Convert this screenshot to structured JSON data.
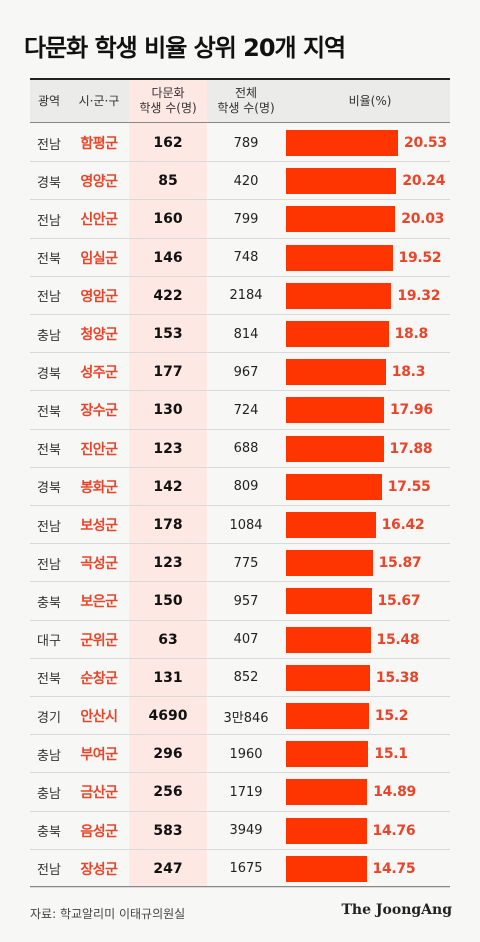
{
  "title": "다문화 학생 비율 상위 20개 지역",
  "headers": {
    "region": "광역",
    "county": "시·군·구",
    "multi_line1": "다문화",
    "multi_line2": "학생 수(명)",
    "total_line1": "전체",
    "total_line2": "학생 수(명)",
    "ratio": "비율(%)"
  },
  "rows": [
    {
      "region": "전남",
      "county": "함평군",
      "multicultural": "162",
      "total": "789",
      "ratio": "20.53"
    },
    {
      "region": "경북",
      "county": "영양군",
      "multicultural": "85",
      "total": "420",
      "ratio": "20.24"
    },
    {
      "region": "전남",
      "county": "신안군",
      "multicultural": "160",
      "total": "799",
      "ratio": "20.03"
    },
    {
      "region": "전북",
      "county": "임실군",
      "multicultural": "146",
      "total": "748",
      "ratio": "19.52"
    },
    {
      "region": "전남",
      "county": "영암군",
      "multicultural": "422",
      "total": "2184",
      "ratio": "19.32"
    },
    {
      "region": "충남",
      "county": "청양군",
      "multicultural": "153",
      "total": "814",
      "ratio": "18.8"
    },
    {
      "region": "경북",
      "county": "성주군",
      "multicultural": "177",
      "total": "967",
      "ratio": "18.3"
    },
    {
      "region": "전북",
      "county": "장수군",
      "multicultural": "130",
      "total": "724",
      "ratio": "17.96"
    },
    {
      "region": "전북",
      "county": "진안군",
      "multicultural": "123",
      "total": "688",
      "ratio": "17.88"
    },
    {
      "region": "경북",
      "county": "봉화군",
      "multicultural": "142",
      "total": "809",
      "ratio": "17.55"
    },
    {
      "region": "전남",
      "county": "보성군",
      "multicultural": "178",
      "total": "1084",
      "ratio": "16.42"
    },
    {
      "region": "전남",
      "county": "곡성군",
      "multicultural": "123",
      "total": "775",
      "ratio": "15.87"
    },
    {
      "region": "충북",
      "county": "보은군",
      "multicultural": "150",
      "total": "957",
      "ratio": "15.67"
    },
    {
      "region": "대구",
      "county": "군위군",
      "multicultural": "63",
      "total": "407",
      "ratio": "15.48"
    },
    {
      "region": "전북",
      "county": "순창군",
      "multicultural": "131",
      "total": "852",
      "ratio": "15.38"
    },
    {
      "region": "경기",
      "county": "안산시",
      "multicultural": "4690",
      "total": "3만846",
      "ratio": "15.2"
    },
    {
      "region": "충남",
      "county": "부여군",
      "multicultural": "296",
      "total": "1960",
      "ratio": "15.1"
    },
    {
      "region": "충남",
      "county": "금산군",
      "multicultural": "256",
      "total": "1719",
      "ratio": "14.89"
    },
    {
      "region": "충북",
      "county": "음성군",
      "multicultural": "583",
      "total": "3949",
      "ratio": "14.76"
    },
    {
      "region": "전남",
      "county": "장성군",
      "multicultural": "247",
      "total": "1675",
      "ratio": "14.75"
    }
  ],
  "chart_data": {
    "type": "bar",
    "categories": [
      "함평군",
      "영양군",
      "신안군",
      "임실군",
      "영암군",
      "청양군",
      "성주군",
      "장수군",
      "진안군",
      "봉화군",
      "보성군",
      "곡성군",
      "보은군",
      "군위군",
      "순창군",
      "안산시",
      "부여군",
      "금산군",
      "음성군",
      "장성군"
    ],
    "values": [
      20.53,
      20.24,
      20.03,
      19.52,
      19.32,
      18.8,
      18.3,
      17.96,
      17.88,
      17.55,
      16.42,
      15.87,
      15.67,
      15.48,
      15.38,
      15.2,
      15.1,
      14.89,
      14.76,
      14.75
    ],
    "title": "다문화 학생 비율 상위 20개 지역",
    "ylabel": "비율(%)",
    "orientation": "horizontal",
    "bar_color": "#ff3500",
    "label_color": "#e8452a"
  },
  "colors": {
    "accent": "#ff3500",
    "county_text": "#e8452a",
    "stripe": "#fde8e3"
  },
  "source": "자료: 학교알리미 이태규의원실",
  "logo": "The JoongAng"
}
